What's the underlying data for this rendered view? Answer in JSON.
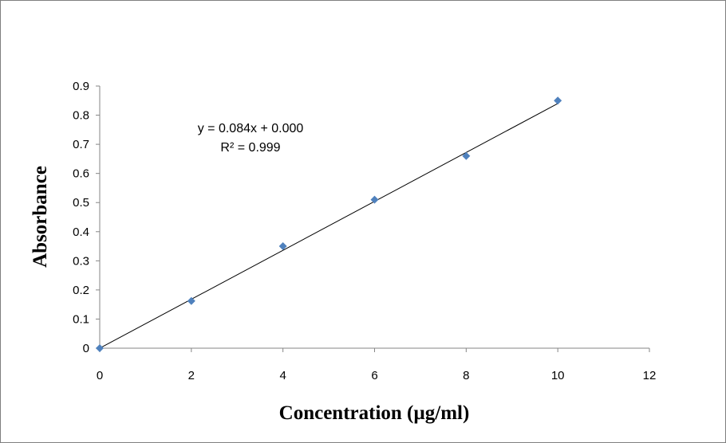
{
  "chart_data": {
    "type": "scatter",
    "title": "",
    "xlabel": "Concentration (µg/ml)",
    "ylabel": "Absorbance",
    "xlim": [
      0,
      12
    ],
    "ylim": [
      0,
      0.9
    ],
    "xticks": [
      "0",
      "2",
      "4",
      "6",
      "8",
      "10",
      "12"
    ],
    "yticks": [
      "0",
      "0.1",
      "0.2",
      "0.3",
      "0.4",
      "0.5",
      "0.6",
      "0.7",
      "0.8",
      "0.9"
    ],
    "grid": false,
    "legend": "none",
    "marker": "diamond",
    "marker_color": "#4f81bd",
    "line_color": "#000000",
    "series": [
      {
        "x": [
          0,
          2,
          4,
          6,
          8,
          10
        ],
        "y": [
          0,
          0.162,
          0.35,
          0.51,
          0.66,
          0.85
        ]
      }
    ],
    "trendline": {
      "type": "linear",
      "slope": 0.084,
      "intercept": 0.0,
      "x_range": [
        0,
        10
      ],
      "equation": "y = 0.084x + 0.000",
      "r_squared": "R² = 0.999"
    }
  }
}
